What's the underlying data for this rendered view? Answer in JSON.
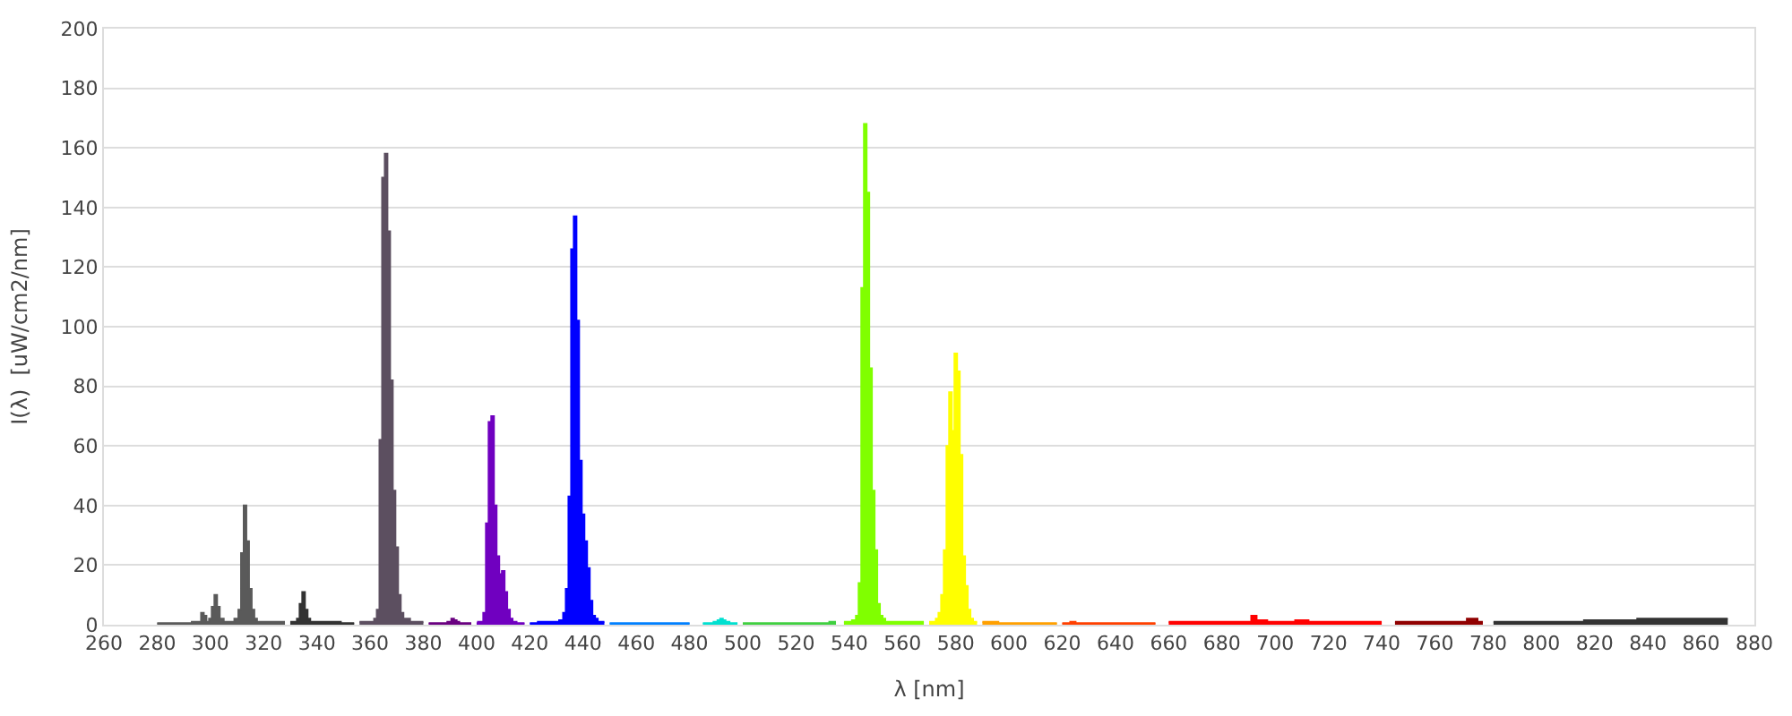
{
  "chart_data": {
    "type": "area",
    "xlabel": "λ [nm]",
    "ylabel": "I(λ)  [uW/cm2/nm]",
    "xlim": [
      260,
      880
    ],
    "xticks": [
      260,
      280,
      300,
      320,
      340,
      360,
      380,
      400,
      420,
      440,
      460,
      480,
      500,
      520,
      540,
      560,
      580,
      600,
      620,
      640,
      660,
      680,
      700,
      720,
      740,
      760,
      780,
      800,
      820,
      840,
      860,
      880
    ],
    "ylim": [
      0,
      200
    ],
    "yticks": [
      0,
      20,
      40,
      60,
      80,
      100,
      120,
      140,
      160,
      180,
      200
    ],
    "grid": "y",
    "series": [
      {
        "color": "#5a5a5a",
        "x": [
          280,
          290,
          292,
          294,
          296,
          297,
          298,
          299,
          300,
          301,
          302,
          303,
          304,
          306,
          308,
          310,
          311,
          312,
          313,
          314,
          315,
          316,
          317,
          318,
          320,
          322,
          324,
          326,
          328
        ],
        "values": [
          0.5,
          0.5,
          0.5,
          1,
          1,
          4,
          3,
          1,
          2,
          6,
          10,
          6,
          2,
          1,
          1,
          2,
          5,
          24,
          40,
          28,
          12,
          5,
          2,
          1,
          1,
          1,
          1,
          1,
          1
        ]
      },
      {
        "color": "#333333",
        "x": [
          330,
          332,
          333,
          334,
          335,
          336,
          337,
          338,
          340,
          342,
          344,
          346,
          348,
          350,
          352,
          354
        ],
        "values": [
          1,
          1,
          2,
          7,
          11,
          5,
          2,
          1,
          1,
          1,
          1,
          1,
          1,
          0.5,
          0.5,
          0.5
        ]
      },
      {
        "color": "#5c4f60",
        "x": [
          356,
          358,
          360,
          361,
          362,
          363,
          364,
          365,
          366,
          367,
          368,
          369,
          370,
          371,
          372,
          373,
          374,
          376,
          378,
          380
        ],
        "values": [
          1,
          1,
          1,
          1,
          2,
          5,
          62,
          150,
          158,
          132,
          82,
          45,
          26,
          10,
          4,
          2,
          2,
          1,
          1,
          1
        ]
      },
      {
        "color": "#6a0080",
        "x": [
          382,
          384,
          386,
          388,
          390,
          391,
          392,
          393,
          394,
          396,
          398
        ],
        "values": [
          0.5,
          0.5,
          0.5,
          0.5,
          1,
          2,
          1.5,
          1,
          0.5,
          0.5,
          0.5
        ]
      },
      {
        "color": "#7000c0",
        "x": [
          400,
          401,
          402,
          403,
          404,
          405,
          406,
          407,
          408,
          409,
          410,
          411,
          412,
          413,
          414,
          416,
          418
        ],
        "values": [
          0.5,
          1,
          1,
          4,
          34,
          68,
          70,
          40,
          23,
          17,
          18,
          11,
          5,
          2,
          1,
          0.5,
          0.5
        ]
      },
      {
        "color": "#0000ff",
        "x": [
          420,
          422,
          424,
          426,
          428,
          430,
          432,
          433,
          434,
          435,
          436,
          437,
          438,
          439,
          440,
          441,
          442,
          443,
          444,
          445,
          446,
          448
        ],
        "values": [
          0.5,
          0.5,
          1,
          1,
          1,
          1,
          1.5,
          4,
          12,
          43,
          126,
          137,
          102,
          55,
          37,
          28,
          19,
          8,
          3,
          2,
          1,
          1
        ]
      },
      {
        "color": "#0080ff",
        "x": [
          450,
          455,
          460,
          465,
          470,
          475,
          480
        ],
        "values": [
          0.5,
          0.5,
          0.5,
          0.5,
          0.5,
          0.5,
          0.5
        ]
      },
      {
        "color": "#00e0d0",
        "x": [
          485,
          488,
          490,
          491,
          492,
          493,
          494,
          496,
          498
        ],
        "values": [
          0.5,
          0.5,
          1,
          1.5,
          2,
          1.5,
          1,
          0.5,
          0.5
        ]
      },
      {
        "color": "#40d040",
        "x": [
          500,
          505,
          510,
          515,
          520,
          525,
          530,
          535
        ],
        "values": [
          0.5,
          0.5,
          0.5,
          0.5,
          0.5,
          0.5,
          0.5,
          1
        ]
      },
      {
        "color": "#80ff00",
        "x": [
          538,
          540,
          542,
          543,
          544,
          545,
          546,
          547,
          548,
          549,
          550,
          551,
          552,
          553,
          554,
          556,
          558,
          560,
          562,
          564,
          566,
          568
        ],
        "values": [
          1,
          1,
          1.5,
          3,
          14,
          113,
          168,
          145,
          86,
          45,
          25,
          7,
          3,
          2,
          1,
          1,
          1,
          1,
          1,
          1,
          1,
          1
        ]
      },
      {
        "color": "#ffff00",
        "x": [
          570,
          572,
          573,
          574,
          575,
          576,
          577,
          578,
          579,
          580,
          581,
          582,
          583,
          584,
          585,
          586,
          587,
          588
        ],
        "values": [
          1,
          1,
          2,
          4,
          10,
          25,
          60,
          78,
          65,
          91,
          85,
          57,
          23,
          13,
          5,
          2,
          1,
          1
        ]
      },
      {
        "color": "#ffa000",
        "x": [
          590,
          594,
          598,
          602,
          606,
          610,
          614,
          618
        ],
        "values": [
          1,
          1,
          0.5,
          0.5,
          0.5,
          0.5,
          0.5,
          0.5
        ]
      },
      {
        "color": "#ff4000",
        "x": [
          620,
          622,
          624,
          626,
          630,
          635,
          640,
          645,
          650,
          655
        ],
        "values": [
          0.5,
          0.5,
          1,
          0.5,
          0.5,
          0.5,
          0.5,
          0.5,
          0.5,
          0.5
        ]
      },
      {
        "color": "#ff0000",
        "x": [
          660,
          665,
          670,
          675,
          680,
          685,
          690,
          692,
          694,
          700,
          705,
          710,
          715,
          720,
          725,
          730,
          735,
          740
        ],
        "values": [
          1,
          1,
          1,
          1,
          1,
          1,
          1,
          3,
          1.5,
          1,
          1,
          1.5,
          1,
          1,
          1,
          1,
          1,
          1
        ]
      },
      {
        "color": "#900000",
        "x": [
          745,
          750,
          755,
          760,
          765,
          770,
          774,
          778
        ],
        "values": [
          1,
          1,
          1,
          1,
          1,
          1,
          2,
          1
        ]
      },
      {
        "color": "#333333",
        "x": [
          782,
          786,
          790,
          794,
          798,
          802,
          806,
          810,
          814,
          818,
          822,
          826,
          830,
          834,
          838,
          842,
          846,
          850,
          854,
          858,
          862,
          866,
          870
        ],
        "values": [
          1,
          1,
          1,
          1,
          1,
          1,
          1,
          1,
          1,
          1.5,
          1.5,
          1.5,
          1.5,
          1.5,
          2,
          2,
          2,
          2,
          2,
          2,
          2,
          2,
          2
        ]
      }
    ]
  }
}
